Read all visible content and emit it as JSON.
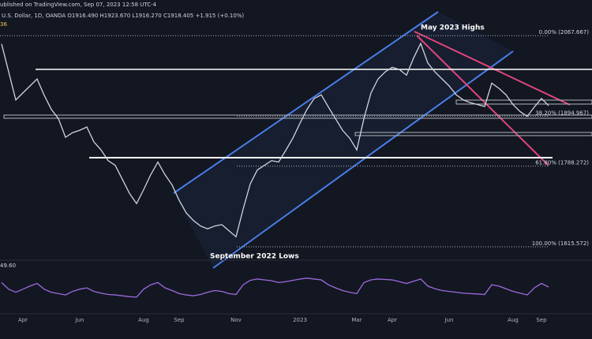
{
  "header": {
    "publisher": "ublished on TradingView.com, Sep 07, 2023 12:58 UTC-4",
    "symbol": "U.S. Dollar, 1D, OANDA O1916.490 H1923.670 L1916.270 C1918.405 +1.915 (+0.10%)",
    "indicator": "36",
    "rsi_reading": "49.60"
  },
  "chart_data": {
    "type": "line",
    "categories": [
      null,
      null,
      null,
      "Apr",
      null,
      null,
      null,
      null,
      null,
      null,
      null,
      "Jun",
      null,
      null,
      null,
      null,
      null,
      null,
      null,
      null,
      "Aug",
      null,
      null,
      null,
      null,
      "Sep",
      null,
      null,
      null,
      null,
      null,
      null,
      null,
      "Nov",
      null,
      null,
      null,
      null,
      null,
      null,
      null,
      null,
      "2023",
      null,
      null,
      null,
      null,
      null,
      null,
      null,
      "Mar",
      null,
      null,
      null,
      null,
      "Apr",
      null,
      null,
      null,
      null,
      null,
      null,
      null,
      "Jun",
      null,
      null,
      null,
      null,
      null,
      null,
      null,
      null,
      "Aug",
      null,
      null,
      null,
      "Sep",
      null
    ],
    "values": [
      2050,
      1990,
      1930,
      1945,
      1960,
      1975,
      1940,
      1910,
      1890,
      1850,
      1860,
      1865,
      1872,
      1840,
      1823,
      1800,
      1790,
      1760,
      1730,
      1708,
      1738,
      1770,
      1797,
      1770,
      1748,
      1715,
      1688,
      1672,
      1660,
      1654,
      1660,
      1663,
      1650,
      1637,
      1696,
      1750,
      1780,
      1790,
      1800,
      1797,
      1822,
      1848,
      1880,
      1910,
      1933,
      1941,
      1915,
      1890,
      1865,
      1848,
      1823,
      1890,
      1945,
      1975,
      1990,
      2000,
      1995,
      1983,
      2020,
      2051,
      2009,
      1990,
      1975,
      1960,
      1941,
      1930,
      1924,
      1920,
      1916,
      1966,
      1955,
      1941,
      1920,
      1905,
      1895,
      1915,
      1933,
      1918
    ],
    "color": "#d1d4dc",
    "ylim": [
      1570,
      2144
    ],
    "levels": [
      {
        "value": 2067.667,
        "label": "0.00% (2067.667)"
      },
      {
        "value": 1894.967,
        "label": "38.20% (1894.967)"
      },
      {
        "value": 1788.272,
        "label": "61.80% (1788.272)"
      },
      {
        "value": 1615.572,
        "label": "100.00% (1615.572)"
      }
    ],
    "annotations": [
      "May 2023 Highs",
      "September 2022 Lows"
    ],
    "rsi": {
      "values": [
        60,
        45,
        38,
        45,
        52,
        58,
        45,
        38,
        35,
        32,
        40,
        45,
        48,
        40,
        36,
        33,
        32,
        30,
        28,
        27,
        45,
        55,
        60,
        48,
        42,
        35,
        32,
        30,
        33,
        38,
        42,
        40,
        35,
        33,
        55,
        65,
        68,
        66,
        64,
        60,
        62,
        65,
        68,
        70,
        68,
        66,
        55,
        48,
        42,
        38,
        35,
        60,
        66,
        68,
        67,
        66,
        62,
        58,
        63,
        68,
        52,
        46,
        42,
        40,
        38,
        36,
        35,
        34,
        33,
        55,
        52,
        46,
        40,
        36,
        32,
        48,
        58,
        50
      ],
      "ylim": [
        0,
        100
      ],
      "color": "#9c6ade"
    }
  }
}
